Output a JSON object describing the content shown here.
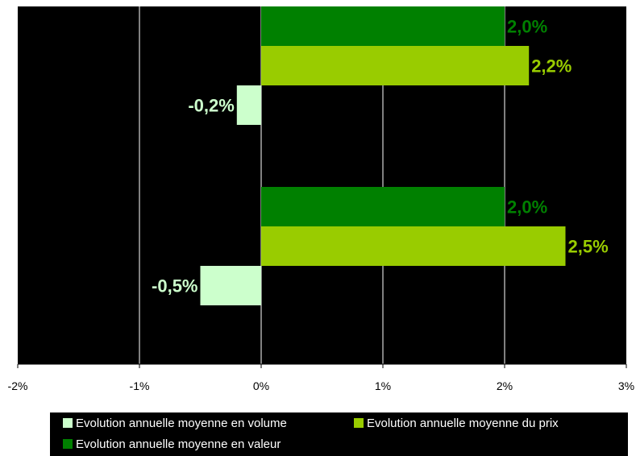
{
  "chart_data": {
    "type": "bar",
    "orientation": "horizontal",
    "categories": [
      "",
      ""
    ],
    "xlim": [
      -2,
      3
    ],
    "x_ticks": [
      "-2%",
      "-1%",
      "0%",
      "1%",
      "2%",
      "3%"
    ],
    "grid": true,
    "legend_position": "bottom",
    "series": [
      {
        "name": "Evolution annuelle moyenne en volume",
        "color": "#ccffcc",
        "values": [
          -0.2,
          -0.5
        ],
        "labels": [
          "-0,2%",
          "-0,5%"
        ]
      },
      {
        "name": "Evolution annuelle moyenne du prix",
        "color": "#99cc00",
        "values": [
          2.2,
          2.5
        ],
        "labels": [
          "2,2%",
          "2,5%"
        ]
      },
      {
        "name": "Evolution annuelle moyenne en valeur",
        "color": "#008000",
        "values": [
          2.0,
          2.0
        ],
        "labels": [
          "2,0%",
          "2,0%"
        ]
      }
    ],
    "background": "#000000"
  },
  "legend": {
    "items": [
      {
        "label": "Evolution annuelle moyenne en volume",
        "color": "#ccffcc"
      },
      {
        "label": "Evolution annuelle moyenne du prix",
        "color": "#99cc00"
      },
      {
        "label": "Evolution annuelle moyenne en valeur",
        "color": "#008000"
      }
    ]
  }
}
